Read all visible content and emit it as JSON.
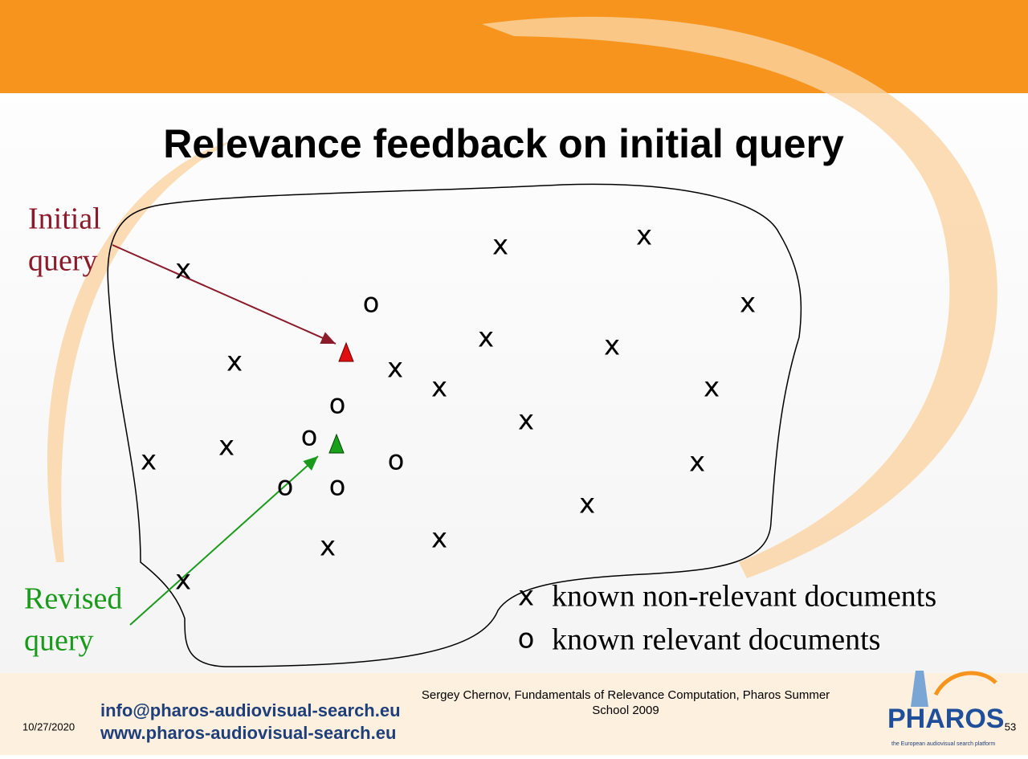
{
  "slide": {
    "title": "Relevance feedback on initial query",
    "initial_query": [
      "Initial",
      "query"
    ],
    "revised_query": [
      "Revised",
      "query"
    ],
    "points": [
      "x",
      "x",
      "x",
      "o",
      "x",
      "x",
      "x",
      "x",
      "x",
      "x",
      "x",
      "o",
      "x",
      "o",
      "x",
      "x",
      "o",
      "x",
      "o",
      "o",
      "x",
      "x",
      "x",
      "x"
    ],
    "legend": [
      {
        "symbol": "x",
        "text": "known non-relevant documents"
      },
      {
        "symbol": "o",
        "text": "known relevant documents"
      }
    ],
    "footer": {
      "email": "info@pharos-audiovisual-search.eu",
      "website": "www.pharos-audiovisual-search.eu",
      "citation": [
        "Sergey Chernov, Fundamentals of Relevance Computation, Pharos Summer",
        "School 2009"
      ],
      "date": "10/27/2020",
      "logo": "PHAROS",
      "tagline": "the European audiovisual search platform",
      "page": "53"
    }
  }
}
